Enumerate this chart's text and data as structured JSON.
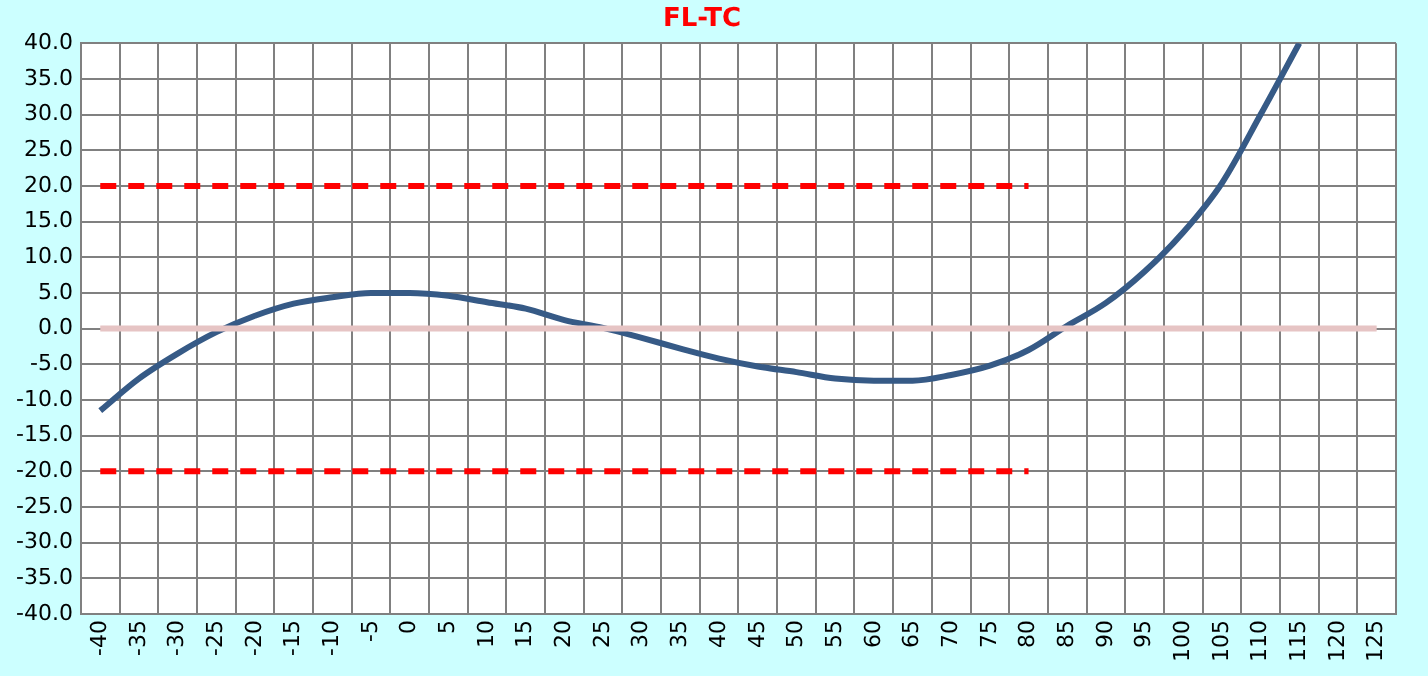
{
  "chart_data": {
    "type": "line",
    "title": "FL-TC",
    "categories": [
      "-40",
      "-35",
      "-30",
      "-25",
      "-20",
      "-15",
      "-10",
      "-5",
      "0",
      "5",
      "10",
      "15",
      "20",
      "25",
      "30",
      "35",
      "40",
      "45",
      "50",
      "55",
      "60",
      "65",
      "70",
      "75",
      "80",
      "85",
      "90",
      "95",
      "100",
      "105",
      "110",
      "115",
      "120",
      "125"
    ],
    "series": [
      {
        "color": "#ff0000",
        "line_style": "dashed",
        "values": [
          20,
          20,
          20,
          20,
          20,
          20,
          20,
          20,
          20,
          20,
          20,
          20,
          20,
          20,
          20,
          20,
          20,
          20,
          20,
          20,
          20,
          20,
          20,
          20,
          20,
          null,
          null,
          null,
          null,
          null,
          null,
          null,
          null,
          null
        ]
      },
      {
        "color": "#ff0000",
        "line_style": "dashed",
        "values": [
          -20,
          -20,
          -20,
          -20,
          -20,
          -20,
          -20,
          -20,
          -20,
          -20,
          -20,
          -20,
          -20,
          -20,
          -20,
          -20,
          -20,
          -20,
          -20,
          -20,
          -20,
          -20,
          -20,
          -20,
          -20,
          null,
          null,
          null,
          null,
          null,
          null,
          null,
          null,
          null
        ]
      },
      {
        "color": "#e6c4c4",
        "line_style": "solid",
        "values": [
          0,
          0,
          0,
          0,
          0,
          0,
          0,
          0,
          0,
          0,
          0,
          0,
          0,
          0,
          0,
          0,
          0,
          0,
          0,
          0,
          0,
          0,
          0,
          0,
          0,
          0,
          0,
          0,
          0,
          0,
          0,
          0,
          0,
          0
        ]
      },
      {
        "color": "#365a86",
        "line_style": "solid",
        "values": [
          -11.5,
          -7,
          -3.5,
          -0.5,
          1.8,
          3.5,
          4.4,
          5,
          5,
          4.6,
          3.7,
          2.8,
          1.2,
          0.1,
          -1.3,
          -2.8,
          -4.2,
          -5.3,
          -6.1,
          -7,
          -7.3,
          -7.3,
          -6.5,
          -5.2,
          -3,
          0.4,
          3.6,
          8,
          13.5,
          20.4,
          30,
          40,
          null,
          null
        ]
      }
    ],
    "ylim": [
      -40,
      40
    ],
    "yticks": [
      {
        "value": -40,
        "label": "-40.0"
      },
      {
        "value": -35,
        "label": "-35.0"
      },
      {
        "value": -30,
        "label": "-30.0"
      },
      {
        "value": -25,
        "label": "-25.0"
      },
      {
        "value": -20,
        "label": "-20.0"
      },
      {
        "value": -15,
        "label": "-15.0"
      },
      {
        "value": -10,
        "label": "-10.0"
      },
      {
        "value": -5,
        "label": "-5.0"
      },
      {
        "value": 0,
        "label": "0.0"
      },
      {
        "value": 5,
        "label": "5.0"
      },
      {
        "value": 10,
        "label": "10.0"
      },
      {
        "value": 15,
        "label": "15.0"
      },
      {
        "value": 20,
        "label": "20.0"
      },
      {
        "value": 25,
        "label": "25.0"
      },
      {
        "value": 30,
        "label": "30.0"
      },
      {
        "value": 35,
        "label": "35.0"
      },
      {
        "value": 40,
        "label": "40.0"
      }
    ],
    "grid": true,
    "marker": "none"
  }
}
